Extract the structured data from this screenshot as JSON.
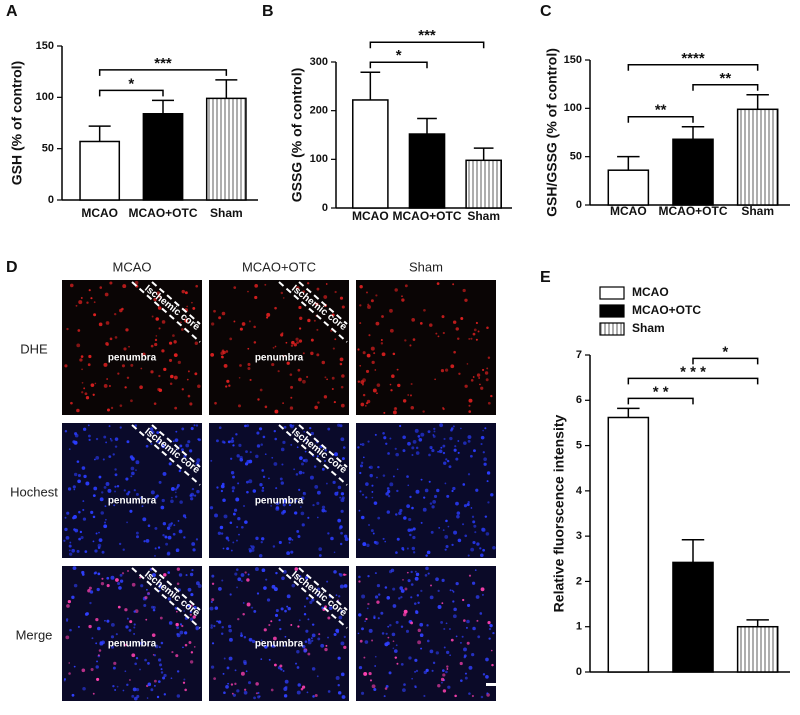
{
  "chart_data": [
    {
      "type": "bar",
      "label": "A",
      "ylabel": "GSH (% of control)",
      "categories": [
        "MCAO",
        "MCAO+OTC",
        "Sham"
      ],
      "values": [
        57,
        84,
        99
      ],
      "errors": [
        15,
        13,
        18
      ],
      "colors": [
        "#ffffff",
        "#000000",
        "#9a9a9a"
      ],
      "hatch": [
        false,
        false,
        true
      ],
      "ylim": [
        0,
        150
      ],
      "yticks": [
        0,
        50,
        100,
        150
      ],
      "comparisons": [
        {
          "between": [
            "MCAO",
            "MCAO+OTC"
          ],
          "label": "*"
        },
        {
          "between": [
            "MCAO",
            "Sham"
          ],
          "label": "***"
        }
      ]
    },
    {
      "type": "bar",
      "label": "B",
      "ylabel": "GSSG (% of control)",
      "categories": [
        "MCAO",
        "MCAO+OTC",
        "Sham"
      ],
      "values": [
        222,
        152,
        98
      ],
      "errors": [
        57,
        32,
        25
      ],
      "colors": [
        "#ffffff",
        "#000000",
        "#9a9a9a"
      ],
      "hatch": [
        false,
        false,
        true
      ],
      "ylim": [
        0,
        300
      ],
      "yticks": [
        0,
        100,
        200,
        300
      ],
      "comparisons": [
        {
          "between": [
            "MCAO",
            "MCAO+OTC"
          ],
          "label": "*"
        },
        {
          "between": [
            "MCAO",
            "Sham"
          ],
          "label": "***"
        }
      ]
    },
    {
      "type": "bar",
      "label": "C",
      "ylabel": "GSH/GSSG (% of control)",
      "categories": [
        "MCAO",
        "MCAO+OTC",
        "Sham"
      ],
      "values": [
        36,
        68,
        99
      ],
      "errors": [
        14,
        13,
        15
      ],
      "colors": [
        "#ffffff",
        "#000000",
        "#9a9a9a"
      ],
      "hatch": [
        false,
        false,
        true
      ],
      "ylim": [
        0,
        150
      ],
      "yticks": [
        0,
        50,
        100,
        150
      ],
      "comparisons": [
        {
          "between": [
            "MCAO",
            "MCAO+OTC"
          ],
          "label": "**"
        },
        {
          "between": [
            "MCAO+OTC",
            "Sham"
          ],
          "label": "**"
        },
        {
          "between": [
            "MCAO",
            "Sham"
          ],
          "label": "****"
        }
      ]
    },
    {
      "type": "bar",
      "label": "E",
      "ylabel": "Relative fluorscence intensity",
      "categories": [
        "MCAO",
        "MCAO+OTC",
        "Sham"
      ],
      "values": [
        5.62,
        2.42,
        1.0
      ],
      "errors": [
        0.2,
        0.5,
        0.15
      ],
      "colors": [
        "#ffffff",
        "#000000",
        "#9a9a9a"
      ],
      "hatch": [
        false,
        false,
        true
      ],
      "ylim": [
        0,
        7
      ],
      "yticks": [
        0,
        1,
        2,
        3,
        4,
        5,
        6,
        7
      ],
      "legend": "top-left",
      "xtick_labels": false,
      "comparisons": [
        {
          "between": [
            "MCAO",
            "MCAO+OTC"
          ],
          "label": "* *"
        },
        {
          "between": [
            "MCAO",
            "Sham"
          ],
          "label": "* * *"
        },
        {
          "between": [
            "MCAO+OTC",
            "Sham"
          ],
          "label": "*"
        }
      ]
    }
  ],
  "panel_d": {
    "label": "D",
    "columns": [
      "MCAO",
      "MCAO+OTC",
      "Sham"
    ],
    "rows": [
      "DHE",
      "Hochest",
      "Merge"
    ],
    "core_label": "Ischemic core",
    "penumbra_label": "penumbra"
  }
}
